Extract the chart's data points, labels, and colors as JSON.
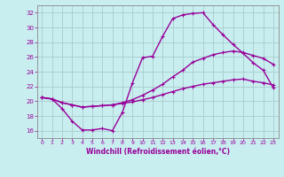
{
  "xlabel": "Windchill (Refroidissement éolien,°C)",
  "background_color": "#c8eef0",
  "grid_color": "#aacccc",
  "line_color": "#990099",
  "xlim": [
    -0.5,
    23.5
  ],
  "ylim": [
    15,
    33
  ],
  "xticks": [
    0,
    1,
    2,
    3,
    4,
    5,
    6,
    7,
    8,
    9,
    10,
    11,
    12,
    13,
    14,
    15,
    16,
    17,
    18,
    19,
    20,
    21,
    22,
    23
  ],
  "yticks": [
    16,
    18,
    20,
    22,
    24,
    26,
    28,
    30,
    32
  ],
  "curve1_x": [
    0,
    1,
    2,
    3,
    4,
    5,
    6,
    7,
    8,
    9,
    10,
    11,
    12,
    13,
    14,
    15,
    16,
    17,
    18,
    19,
    20,
    21,
    22,
    23
  ],
  "curve1_y": [
    20.5,
    20.3,
    19.0,
    17.3,
    16.1,
    16.1,
    16.3,
    16.0,
    18.5,
    22.5,
    25.9,
    26.1,
    28.8,
    31.2,
    31.7,
    31.9,
    32.0,
    30.4,
    29.0,
    27.7,
    26.5,
    25.2,
    24.2,
    21.8
  ],
  "curve2_x": [
    0,
    1,
    2,
    3,
    4,
    5,
    6,
    7,
    8,
    9,
    10,
    11,
    12,
    13,
    14,
    15,
    16,
    17,
    18,
    19,
    20,
    21,
    22,
    23
  ],
  "curve2_y": [
    20.5,
    20.3,
    19.8,
    19.5,
    19.2,
    19.3,
    19.4,
    19.5,
    19.8,
    20.2,
    20.8,
    21.5,
    22.3,
    23.3,
    24.2,
    25.3,
    25.8,
    26.3,
    26.6,
    26.8,
    26.6,
    26.2,
    25.8,
    25.0
  ],
  "curve3_x": [
    0,
    1,
    2,
    3,
    4,
    5,
    6,
    7,
    8,
    9,
    10,
    11,
    12,
    13,
    14,
    15,
    16,
    17,
    18,
    19,
    20,
    21,
    22,
    23
  ],
  "curve3_y": [
    20.5,
    20.3,
    19.8,
    19.5,
    19.2,
    19.3,
    19.4,
    19.5,
    19.7,
    19.9,
    20.2,
    20.5,
    20.9,
    21.3,
    21.7,
    22.0,
    22.3,
    22.5,
    22.7,
    22.9,
    23.0,
    22.7,
    22.5,
    22.2
  ]
}
